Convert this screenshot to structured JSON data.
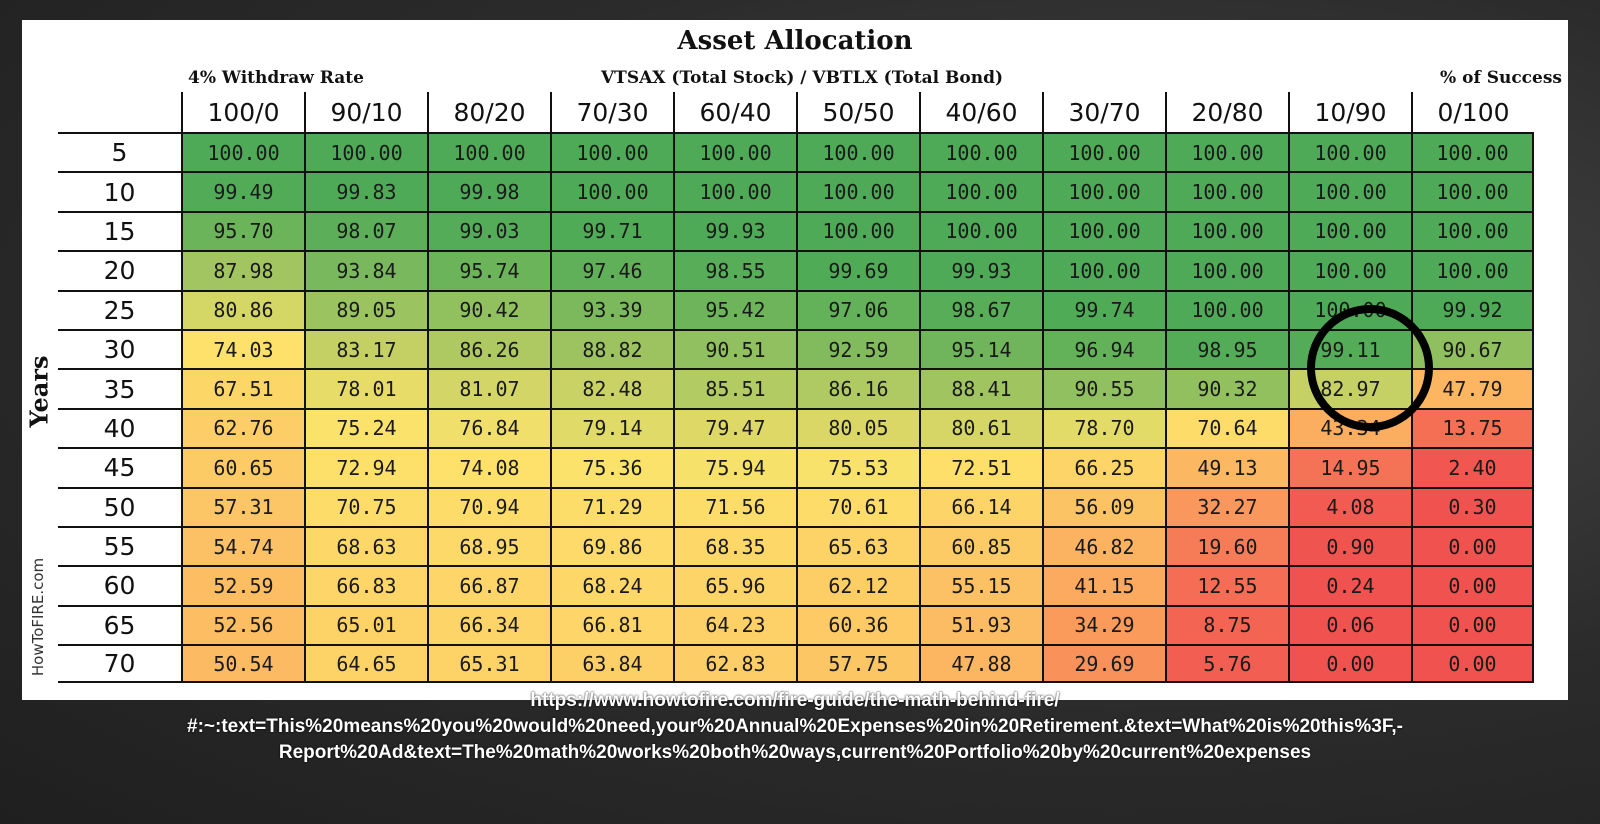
{
  "chart_data": {
    "type": "heatmap",
    "title": "Asset Allocation",
    "subtitle_left": "4% Withdraw Rate",
    "subtitle_center": "VTSAX (Total Stock) / VBTLX (Total Bond)",
    "subtitle_right": "% of Success",
    "ylabel": "Years",
    "columns": [
      "100/0",
      "90/10",
      "80/20",
      "70/30",
      "60/40",
      "50/50",
      "40/60",
      "30/70",
      "20/80",
      "10/90",
      "0/100"
    ],
    "rows": [
      "5",
      "10",
      "15",
      "20",
      "25",
      "30",
      "35",
      "40",
      "45",
      "50",
      "55",
      "60",
      "65",
      "70"
    ],
    "values": [
      [
        "100.00",
        "100.00",
        "100.00",
        "100.00",
        "100.00",
        "100.00",
        "100.00",
        "100.00",
        "100.00",
        "100.00",
        "100.00"
      ],
      [
        "99.49",
        "99.83",
        "99.98",
        "100.00",
        "100.00",
        "100.00",
        "100.00",
        "100.00",
        "100.00",
        "100.00",
        "100.00"
      ],
      [
        "95.70",
        "98.07",
        "99.03",
        "99.71",
        "99.93",
        "100.00",
        "100.00",
        "100.00",
        "100.00",
        "100.00",
        "100.00"
      ],
      [
        "87.98",
        "93.84",
        "95.74",
        "97.46",
        "98.55",
        "99.69",
        "99.93",
        "100.00",
        "100.00",
        "100.00",
        "100.00"
      ],
      [
        "80.86",
        "89.05",
        "90.42",
        "93.39",
        "95.42",
        "97.06",
        "98.67",
        "99.74",
        "100.00",
        "100.00",
        "99.92"
      ],
      [
        "74.03",
        "83.17",
        "86.26",
        "88.82",
        "90.51",
        "92.59",
        "95.14",
        "96.94",
        "98.95",
        "99.11",
        "90.67"
      ],
      [
        "67.51",
        "78.01",
        "81.07",
        "82.48",
        "85.51",
        "86.16",
        "88.41",
        "90.55",
        "90.32",
        "82.97",
        "47.79"
      ],
      [
        "62.76",
        "75.24",
        "76.84",
        "79.14",
        "79.47",
        "80.05",
        "80.61",
        "78.70",
        "70.64",
        "43.34",
        "13.75"
      ],
      [
        "60.65",
        "72.94",
        "74.08",
        "75.36",
        "75.94",
        "75.53",
        "72.51",
        "66.25",
        "49.13",
        "14.95",
        "2.40"
      ],
      [
        "57.31",
        "70.75",
        "70.94",
        "71.29",
        "71.56",
        "70.61",
        "66.14",
        "56.09",
        "32.27",
        "4.08",
        "0.30"
      ],
      [
        "54.74",
        "68.63",
        "68.95",
        "69.86",
        "68.35",
        "65.63",
        "60.85",
        "46.82",
        "19.60",
        "0.90",
        "0.00"
      ],
      [
        "52.59",
        "66.83",
        "66.87",
        "68.24",
        "65.96",
        "62.12",
        "55.15",
        "41.15",
        "12.55",
        "0.24",
        "0.00"
      ],
      [
        "52.56",
        "65.01",
        "66.34",
        "66.81",
        "64.23",
        "60.36",
        "51.93",
        "34.29",
        "8.75",
        "0.06",
        "0.00"
      ],
      [
        "50.54",
        "64.65",
        "65.31",
        "63.84",
        "62.83",
        "57.75",
        "47.88",
        "29.69",
        "5.76",
        "0.00",
        "0.00"
      ]
    ],
    "color_scale": {
      "low": "#f0524f",
      "mid": "#fde36b",
      "high": "#4eaa57"
    }
  },
  "credit": "HowToFIRE.com",
  "caption": {
    "line1": "https://www.howtofire.com/fire-guide/the-math-behind-fire/",
    "line2": "#:~:text=This%20means%20you%20would%20need,your%20Annual%20Expenses%20in%20Retirement.&text=What%20is%20this%3F,-",
    "line3": "Report%20Ad&text=The%20math%20works%20both%20ways,current%20Portfolio%20by%20current%20expenses"
  }
}
